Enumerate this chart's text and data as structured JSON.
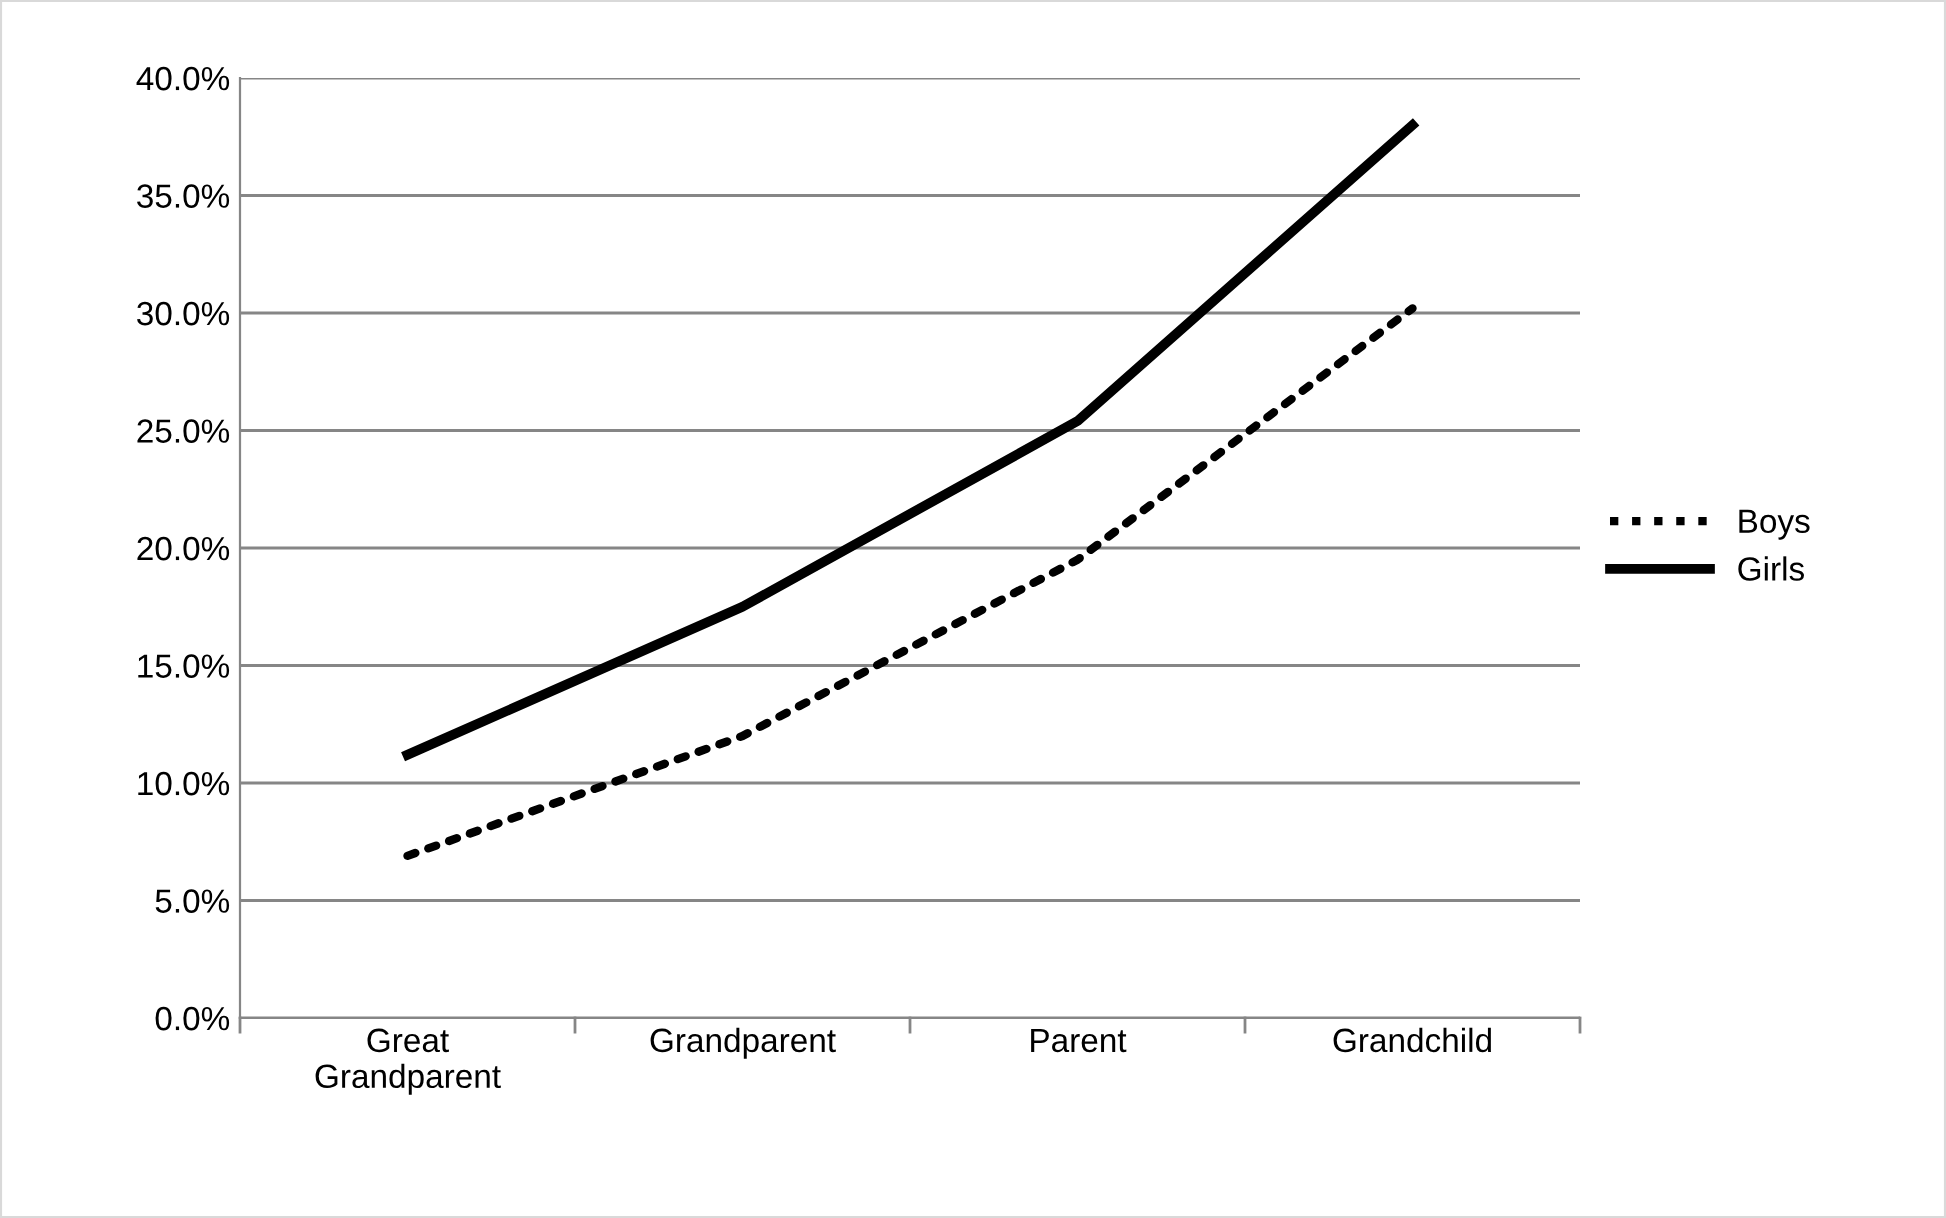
{
  "chart_data": {
    "type": "line",
    "categories": [
      "Great\nGrandparent",
      "Grandparent",
      "Parent",
      "Grandchild"
    ],
    "series": [
      {
        "name": "Boys",
        "color": "#000000",
        "values": [
          6.9,
          12.0,
          19.5,
          30.2
        ],
        "line_style": "dotted"
      },
      {
        "name": "Girls",
        "color": "#000000",
        "values": [
          11.2,
          17.5,
          25.4,
          38.0
        ],
        "line_style": "solid"
      }
    ],
    "ylim": [
      0,
      40
    ],
    "yticks": [
      {
        "value": 0,
        "label": "0.0%"
      },
      {
        "value": 5,
        "label": "5.0%"
      },
      {
        "value": 10,
        "label": "10.0%"
      },
      {
        "value": 15,
        "label": "15.0%"
      },
      {
        "value": 20,
        "label": "20.0%"
      },
      {
        "value": 25,
        "label": "25.0%"
      },
      {
        "value": 30,
        "label": "30.0%"
      },
      {
        "value": 35,
        "label": "35.0%"
      },
      {
        "value": 40,
        "label": "40.0%"
      }
    ],
    "grid": "y",
    "legend": "right",
    "marker": "none"
  }
}
